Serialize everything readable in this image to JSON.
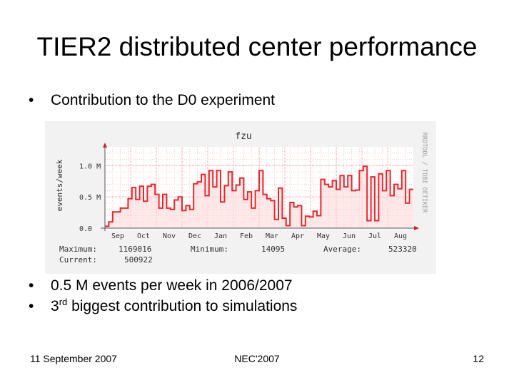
{
  "slide": {
    "title": "TIER2 distributed center performance",
    "bullet_symbol": "•",
    "bullets_top": [
      "Contribution to the D0 experiment"
    ],
    "bullet_events": "0.5 M events per week in 2006/2007",
    "bullet_rank_number": "3",
    "bullet_rank_suffix": "rd",
    "bullet_rank_rest": " biggest contribution to simulations",
    "footer": {
      "date": "11 September 2007",
      "conference": "NEC'2007",
      "page": "12"
    }
  },
  "colors": {
    "line": "#e8262d",
    "area": "#ffd8d8",
    "grid": "#ff9a9a",
    "panel_bg": "#f2f2f2",
    "plot_bg": "#ffffff",
    "axis": "#555555",
    "text": "#333333",
    "arrow": "#cc2222"
  },
  "chart_data": {
    "type": "line",
    "title": "fzu",
    "ylabel": "events/week",
    "watermark": "RRDTOOL / TOBI OETIKER",
    "ylim": [
      0,
      1300000
    ],
    "y_ticks": [
      {
        "value": 0,
        "label": "0.0"
      },
      {
        "value": 500000,
        "label": "0.5 M"
      },
      {
        "value": 1000000,
        "label": "1.0 M"
      }
    ],
    "x_ticks": [
      "Sep",
      "Oct",
      "Nov",
      "Dec",
      "Jan",
      "Feb",
      "Mar",
      "Apr",
      "May",
      "Jun",
      "Jul",
      "Aug"
    ],
    "values": [
      30000,
      100000,
      260000,
      260000,
      320000,
      320000,
      470000,
      650000,
      460000,
      670000,
      430000,
      670000,
      700000,
      540000,
      320000,
      540000,
      320000,
      300000,
      450000,
      500000,
      280000,
      360000,
      300000,
      710000,
      740000,
      860000,
      520000,
      920000,
      660000,
      920000,
      420000,
      680000,
      900000,
      600000,
      690000,
      800000,
      460000,
      580000,
      320000,
      600000,
      920000,
      540000,
      470000,
      440000,
      140000,
      640000,
      160000,
      40000,
      410000,
      340000,
      360000,
      40000,
      190000,
      180000,
      270000,
      200000,
      780000,
      700000,
      660000,
      760000,
      620000,
      840000,
      660000,
      840000,
      600000,
      610000,
      920000,
      990000,
      120000,
      820000,
      120000,
      870000,
      600000,
      920000,
      520000,
      700000,
      630000,
      920000,
      400000,
      620000
    ],
    "summary": {
      "maximum_label": "Maximum:",
      "maximum": "1169016",
      "minimum_label": "Minimum:",
      "minimum": "14095",
      "average_label": "Average:",
      "average": "523320",
      "current_label": "Current:",
      "current": "500922"
    }
  }
}
